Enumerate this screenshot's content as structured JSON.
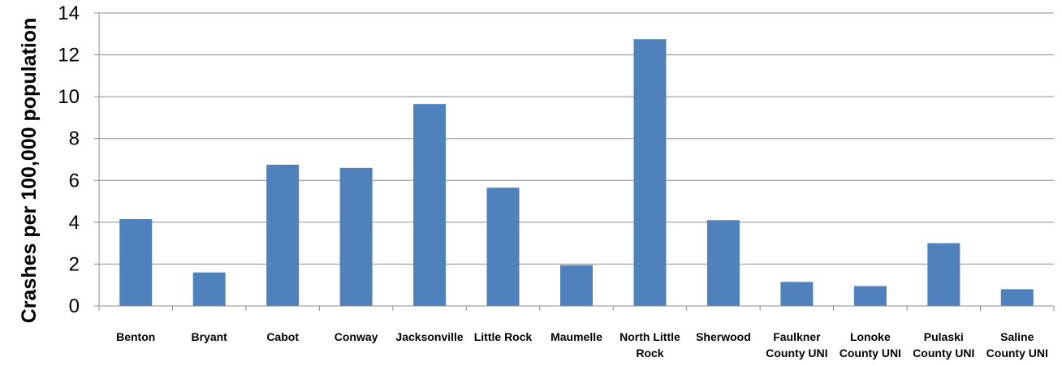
{
  "chart_data": {
    "type": "bar",
    "title": "",
    "xlabel": "",
    "ylabel": "Crashes per 100,000 population",
    "ylim": [
      0,
      14
    ],
    "yticks": [
      0,
      2,
      4,
      6,
      8,
      10,
      12,
      14
    ],
    "grid": true,
    "legend": "none",
    "bar_color": "#4f81bd",
    "categories": [
      [
        "Benton"
      ],
      [
        "Bryant"
      ],
      [
        "Cabot"
      ],
      [
        "Conway"
      ],
      [
        "Jacksonville"
      ],
      [
        "Little Rock"
      ],
      [
        "Maumelle"
      ],
      [
        "North Little",
        "Rock"
      ],
      [
        "Sherwood"
      ],
      [
        "Faulkner",
        "County UNI"
      ],
      [
        "Lonoke",
        "County UNI"
      ],
      [
        "Pulaski",
        "County UNI"
      ],
      [
        "Saline",
        "County UNI"
      ]
    ],
    "values": [
      4.15,
      1.6,
      6.75,
      6.6,
      9.65,
      5.65,
      1.95,
      12.75,
      4.1,
      1.15,
      0.95,
      3.0,
      0.8
    ]
  }
}
